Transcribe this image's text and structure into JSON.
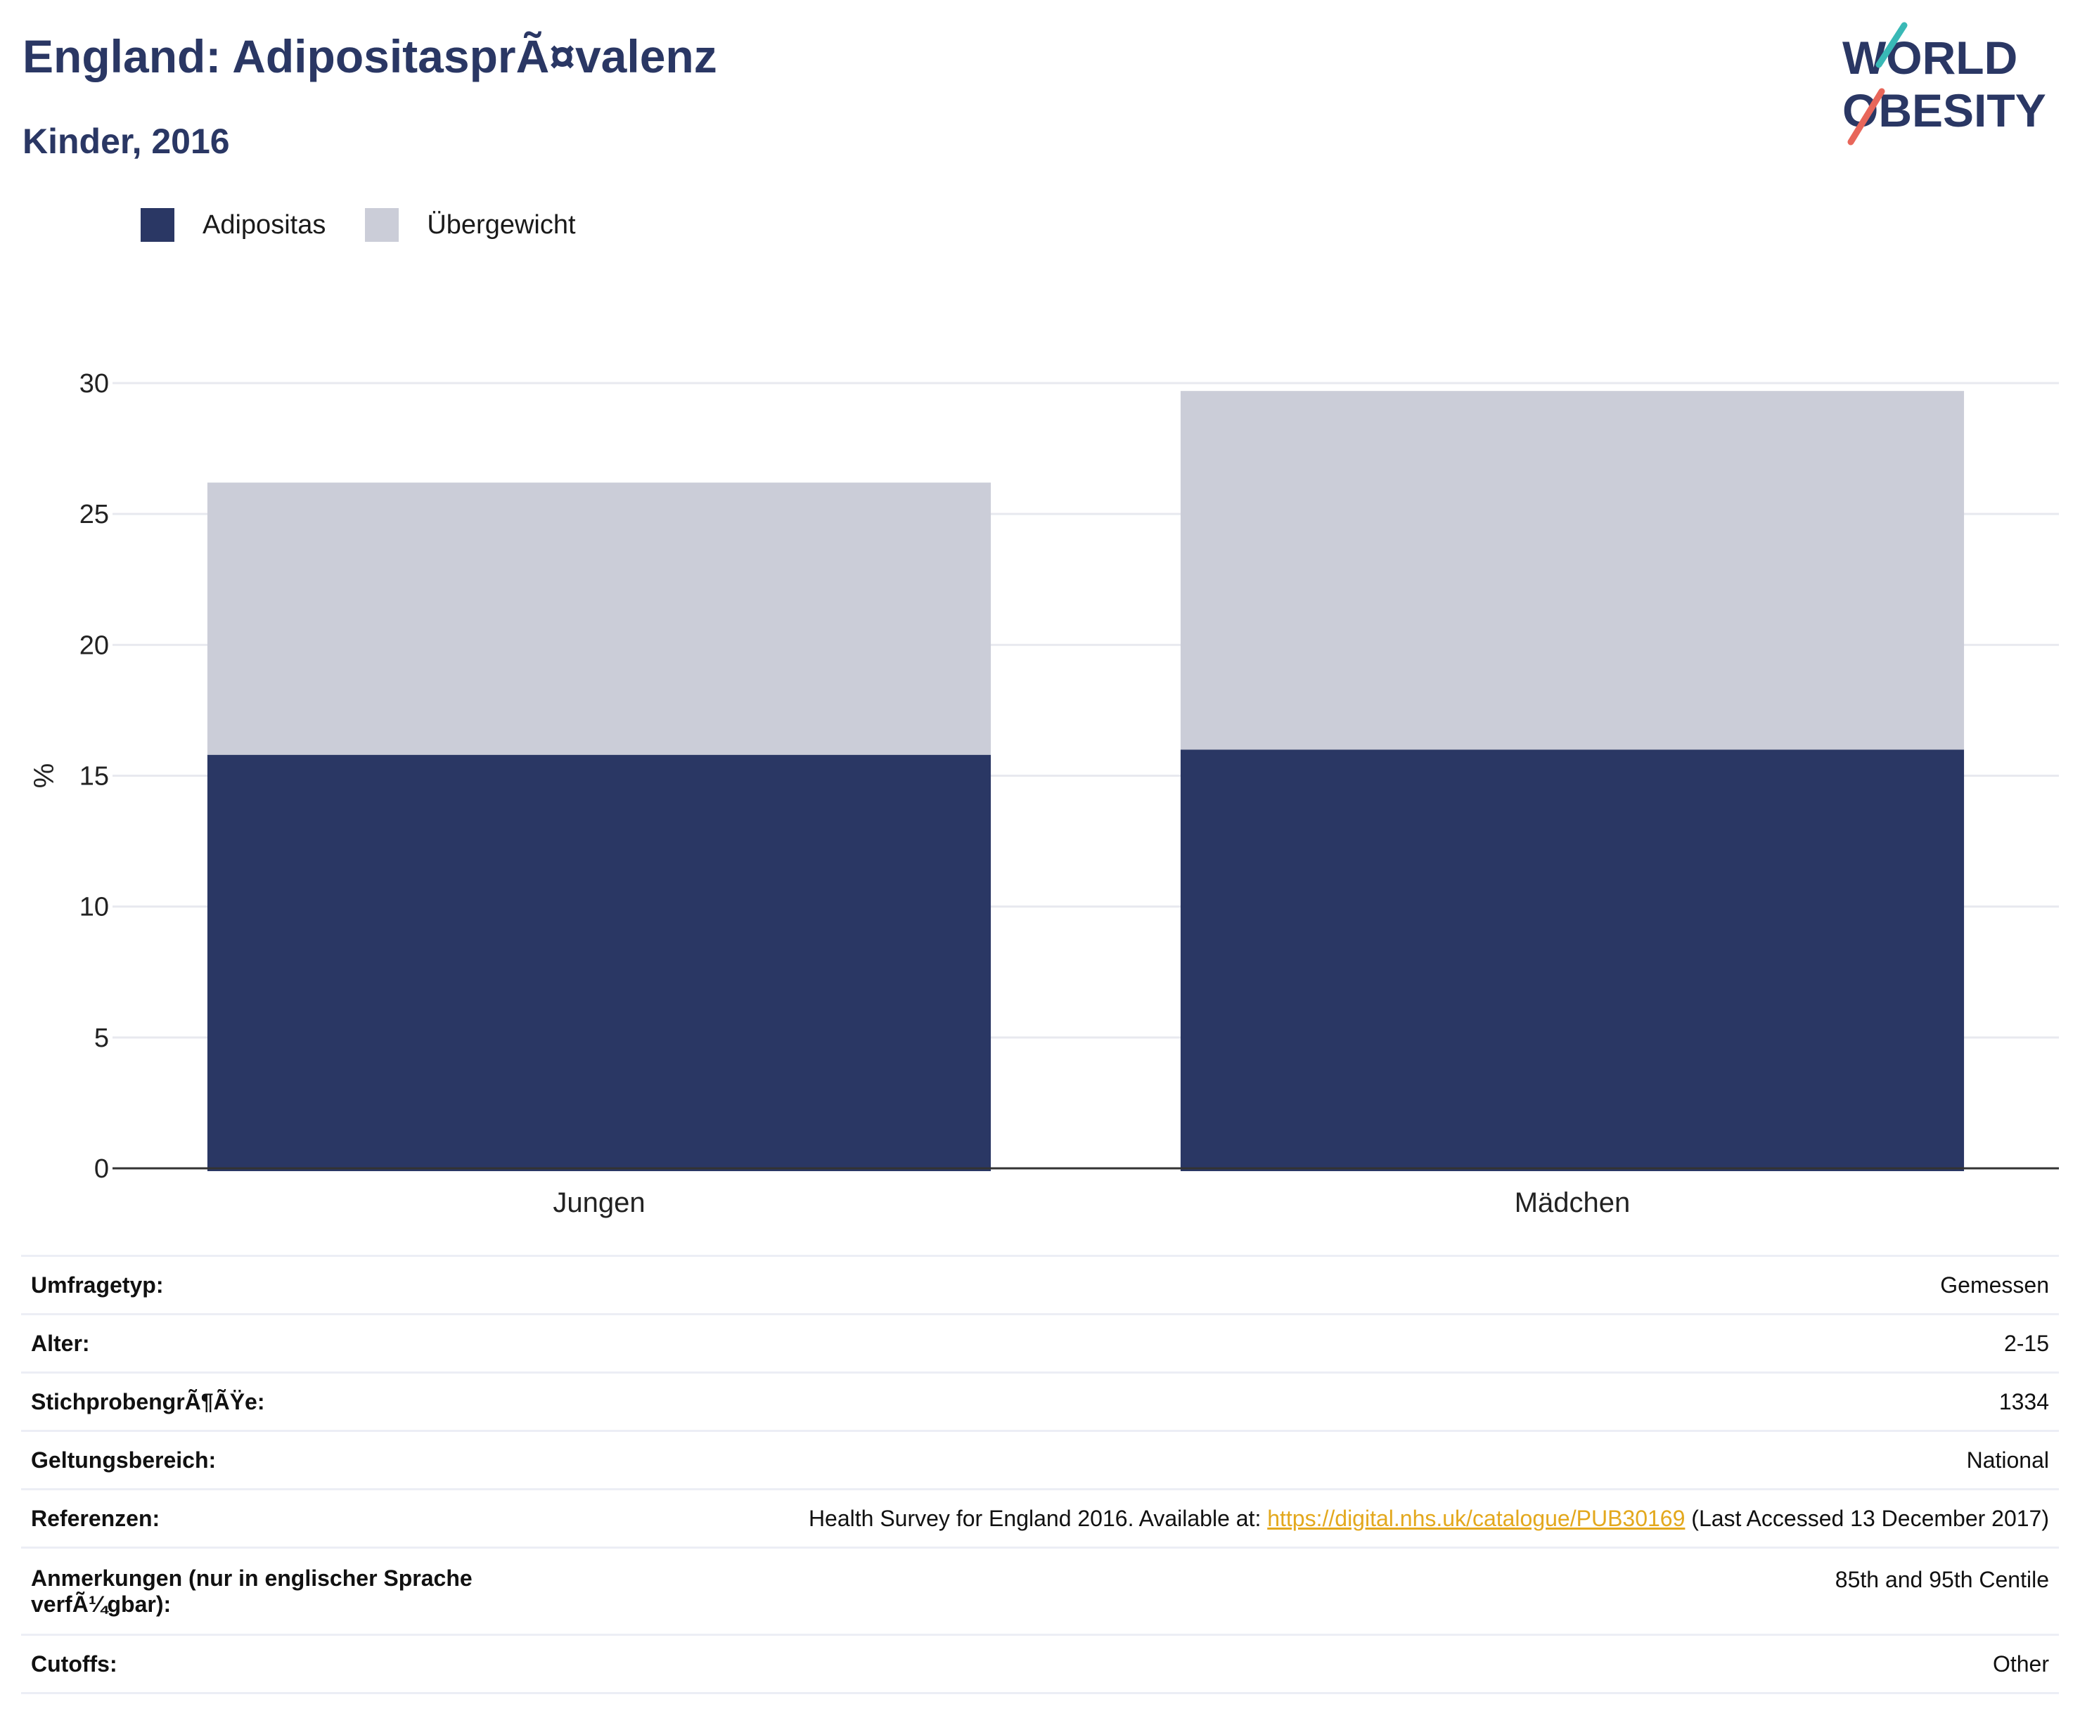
{
  "header": {
    "title": "England: AdipositasprÃ¤valenz",
    "subtitle": "Kinder, 2016"
  },
  "logo": {
    "line1": "WORLD",
    "line2": "OBESITY",
    "colors": {
      "text": "#2a3764",
      "slash_red": "#e8665a",
      "slash_teal": "#39b9b6"
    }
  },
  "legend": [
    {
      "label": "Adipositas",
      "color": "#2a3764"
    },
    {
      "label": "Übergewicht",
      "color": "#cbcdd8"
    }
  ],
  "chart_data": {
    "type": "bar",
    "stacked": true,
    "categories": [
      "Jungen",
      "Mädchen"
    ],
    "series": [
      {
        "name": "Adipositas",
        "values": [
          15.8,
          16.0
        ],
        "color": "#2a3764"
      },
      {
        "name": "Übergewicht",
        "values": [
          10.4,
          13.7
        ],
        "color": "#cbcdd8"
      }
    ],
    "xlabel": "",
    "ylabel": "%",
    "ylim": [
      0,
      30
    ],
    "yticks": [
      0,
      5,
      10,
      15,
      20,
      25,
      30
    ],
    "grid": true,
    "legend_position": "top-left"
  },
  "meta": [
    {
      "key": "Umfragetyp:",
      "value": "Gemessen"
    },
    {
      "key": "Alter:",
      "value": "2-15"
    },
    {
      "key": "StichprobengrÃ¶ÃŸe:",
      "value": "1334"
    },
    {
      "key": "Geltungsbereich:",
      "value": "National"
    },
    {
      "key": "Referenzen:",
      "value_prefix": "Health Survey for England 2016. Available at: ",
      "link": "https://digital.nhs.uk/catalogue/PUB30169",
      "value_suffix": " (Last Accessed 13 December 2017)"
    },
    {
      "key_line1": "Anmerkungen (nur in englischer Sprache",
      "key_line2": "verfÃ¼gbar):",
      "value": "85th and 95th Centile"
    },
    {
      "key": "Cutoffs:",
      "value": "Other"
    }
  ]
}
